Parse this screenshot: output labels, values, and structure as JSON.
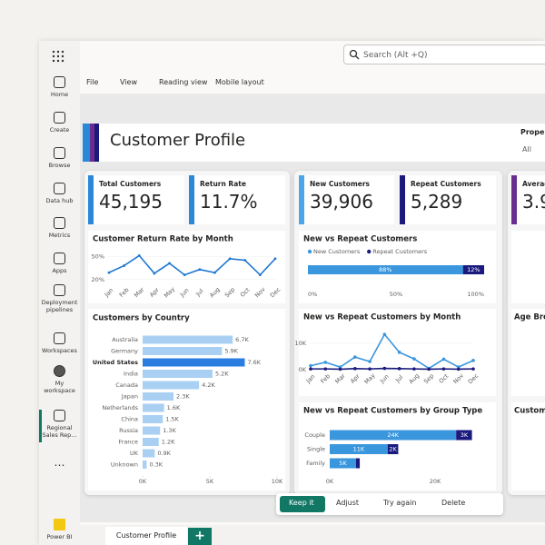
{
  "app": {
    "search": "Search (Alt +Q)",
    "menu": [
      "File",
      "View",
      "Reading view",
      "Mobile layout"
    ],
    "nav": [
      "Home",
      "Create",
      "Browse",
      "Data hub",
      "Metrics",
      "Apps",
      "Deployment pipelines",
      "Workspaces",
      "My workspace",
      "Regional Sales Rep...",
      "Power BI"
    ]
  },
  "report": {
    "title": "Customer Profile",
    "filter_label": "Propert",
    "filter_value": "All",
    "cards": [
      {
        "label": "Total Customers",
        "value": "45,195",
        "color": "#2b88d8"
      },
      {
        "label": "Return Rate",
        "value": "11.7%",
        "color": "#2b88d8"
      },
      {
        "label": "New Customers",
        "value": "39,906",
        "color": "#4aa6e8"
      },
      {
        "label": "Repeat Customers",
        "value": "5,289",
        "color": "#1a1a7e"
      },
      {
        "label": "Averag",
        "value": "3.9",
        "color": "#6b2c91"
      }
    ],
    "clipped_titles": [
      "Averag",
      "Age Bre",
      "Custom"
    ]
  },
  "chart_data": [
    {
      "type": "line",
      "title": "Customer Return Rate by Month",
      "categories": [
        "Jan",
        "Feb",
        "Mar",
        "Apr",
        "May",
        "Jun",
        "Jul",
        "Aug",
        "Sep",
        "Oct",
        "Nov",
        "Dec"
      ],
      "values": [
        29,
        38,
        51,
        28,
        41,
        26,
        33,
        29,
        47,
        45,
        26,
        47
      ],
      "color": "#1f78d1",
      "ylim": [
        15,
        55
      ],
      "yticks": [
        {
          "value": 50,
          "label": "50%"
        },
        {
          "value": 20,
          "label": "20%"
        }
      ]
    },
    {
      "type": "hbar",
      "title": "Customers by Country",
      "categories": [
        "Australia",
        "Germany",
        "United States",
        "India",
        "Canada",
        "Japan",
        "Netherlands",
        "China",
        "Russia",
        "France",
        "UK",
        "Unknown"
      ],
      "values": [
        6700,
        5900,
        7600,
        5200,
        4200,
        2300,
        1600,
        1500,
        1300,
        1200,
        900,
        300
      ],
      "value_labels": [
        "6.7K",
        "5.9K",
        "7.6K",
        "5.2K",
        "4.2K",
        "2.3K",
        "1.6K",
        "1.5K",
        "1.3K",
        "1.2K",
        "0.9K",
        "0.3K"
      ],
      "color": "#a9d0f3",
      "highlight_index": 2,
      "highlight_color": "#2b7de0",
      "xlim": [
        0,
        10000
      ],
      "xticks": [
        {
          "value": 0,
          "label": "0K"
        },
        {
          "value": 5000,
          "label": "5K"
        },
        {
          "value": 10000,
          "label": "10K"
        }
      ]
    },
    {
      "type": "stack100",
      "title": "New vs Repeat Customers",
      "series": [
        {
          "name": "New Customers",
          "color": "#3a96dd",
          "values": [
            88
          ],
          "value_labels": [
            "88%"
          ]
        },
        {
          "name": "Repeat Customers",
          "color": "#1a1a7e",
          "values": [
            12
          ],
          "value_labels": [
            "12%"
          ]
        }
      ],
      "xlim": [
        0,
        100
      ],
      "xticks": [
        {
          "value": 0,
          "label": "0%"
        },
        {
          "value": 50,
          "label": "50%"
        },
        {
          "value": 100,
          "label": "100%"
        }
      ]
    },
    {
      "type": "line",
      "title": "New vs Repeat Customers by Month",
      "categories": [
        "Jan",
        "Feb",
        "Mar",
        "Apr",
        "May",
        "Jun",
        "Jul",
        "Aug",
        "Sep",
        "Oct",
        "Nov",
        "Dec"
      ],
      "series": [
        {
          "color": "#3a96dd",
          "values": [
            1500,
            2800,
            1000,
            4800,
            3100,
            13400,
            6600,
            4100,
            500,
            4000,
            1000,
            3500
          ]
        },
        {
          "color": "#1a1a7e",
          "values": [
            300,
            300,
            200,
            400,
            300,
            500,
            400,
            300,
            200,
            300,
            200,
            300
          ]
        }
      ],
      "ylim": [
        0,
        15000
      ],
      "yticks": [
        {
          "value": 0,
          "label": "0K"
        },
        {
          "value": 10000,
          "label": "10K"
        }
      ]
    },
    {
      "type": "hstack",
      "title": "New vs Repeat Customers by Group Type",
      "categories": [
        "Couple",
        "Single",
        "Family"
      ],
      "series": [
        {
          "color": "#3a96dd",
          "values": [
            24000,
            11000,
            5000
          ],
          "value_labels": [
            "24K",
            "11K",
            "5K"
          ]
        },
        {
          "color": "#1a1a7e",
          "values": [
            3000,
            2000,
            700
          ],
          "value_labels": [
            "3K",
            "2K",
            null
          ]
        }
      ],
      "xlim": [
        0,
        30000
      ],
      "xticks": [
        {
          "value": 0,
          "label": "0K"
        },
        {
          "value": 20000,
          "label": "20K"
        }
      ]
    }
  ],
  "actions": [
    "Keep it",
    "Adjust",
    "Try again",
    "Delete"
  ],
  "tab": "Customer Profile"
}
